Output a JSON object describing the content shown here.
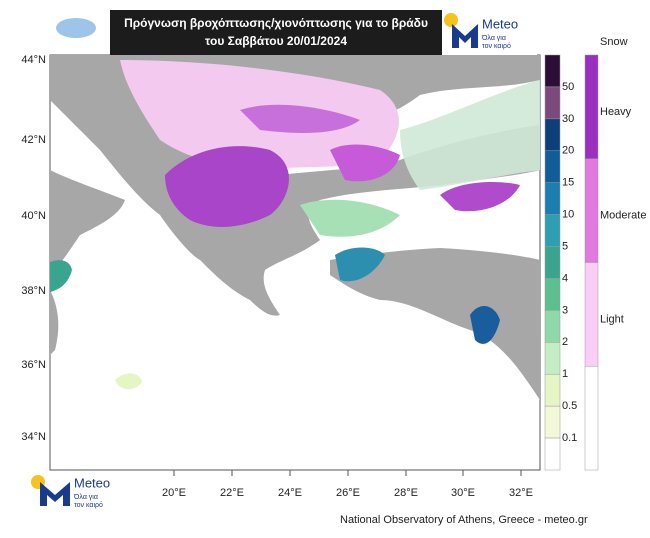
{
  "header": {
    "title_lines": [
      "Πρόγνωση βροχόπτωσης/χιονόπτωσης για το βράδυ",
      "του Σαββάτου 20/01/2024"
    ]
  },
  "logo": {
    "name": "Meteo",
    "tagline_lines": [
      "Όλα για",
      "τον καιρό"
    ]
  },
  "map": {
    "lat_labels": [
      "44°N",
      "42°N",
      "40°N",
      "38°N",
      "36°N",
      "34°N"
    ],
    "lon_labels": [
      "20°E",
      "22°E",
      "24°E",
      "26°E",
      "28°E",
      "30°E",
      "32°E"
    ]
  },
  "rain_legend": {
    "labels": [
      50,
      30,
      20,
      15,
      10,
      5,
      4,
      3,
      2,
      1,
      0.5,
      0.1
    ]
  },
  "snow_legend": {
    "title": "Snow",
    "labels": [
      "Heavy",
      "Moderate",
      "Light"
    ]
  },
  "footer": {
    "credit": "National Observatory of Athens, Greece - meteo.gr"
  }
}
